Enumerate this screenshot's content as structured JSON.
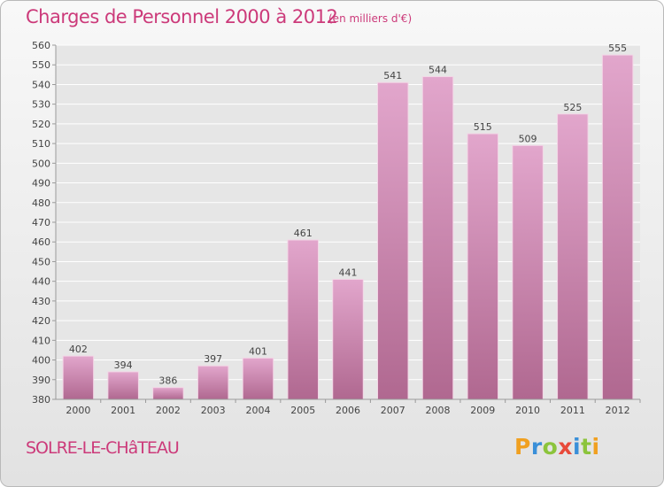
{
  "header": {
    "title": "Charges de Personnel 2000 à 2012",
    "subtitle": "(en milliers d'€)"
  },
  "footer": {
    "commune": "SOLRE-LE-CHâTEAU",
    "logo_letters": [
      {
        "char": "P",
        "color": "#f0a020"
      },
      {
        "char": "r",
        "color": "#3a8fd8"
      },
      {
        "char": "o",
        "color": "#8cc43c"
      },
      {
        "char": "x",
        "color": "#e84a3a"
      },
      {
        "char": "i",
        "color": "#3a8fd8"
      },
      {
        "char": "t",
        "color": "#8cc43c"
      },
      {
        "char": "i",
        "color": "#f0a020"
      }
    ]
  },
  "colors": {
    "bar_top": "#e2a6cc",
    "bar_bottom": "#b06890",
    "title": "#cc3a7a"
  },
  "chart_data": {
    "type": "bar",
    "title": "Charges de Personnel 2000 à 2012",
    "subtitle": "(en milliers d'€)",
    "categories": [
      "2000",
      "2001",
      "2002",
      "2003",
      "2004",
      "2005",
      "2006",
      "2007",
      "2008",
      "2009",
      "2010",
      "2011",
      "2012"
    ],
    "values": [
      402,
      394,
      386,
      397,
      401,
      461,
      441,
      541,
      544,
      515,
      509,
      525,
      555
    ],
    "ylim": [
      380,
      560
    ],
    "ytick_step": 10,
    "grid": true,
    "data_labels": true
  }
}
